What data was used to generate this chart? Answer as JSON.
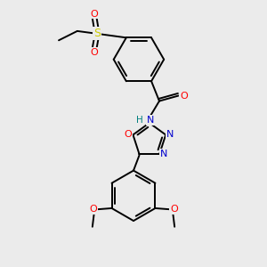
{
  "background_color": "#ebebeb",
  "bond_color": "#000000",
  "bond_width": 1.4,
  "atom_colors": {
    "O": "#ff0000",
    "N": "#0000cd",
    "S": "#cccc00",
    "H": "#008080",
    "C": "#000000"
  },
  "font_size": 7.5
}
